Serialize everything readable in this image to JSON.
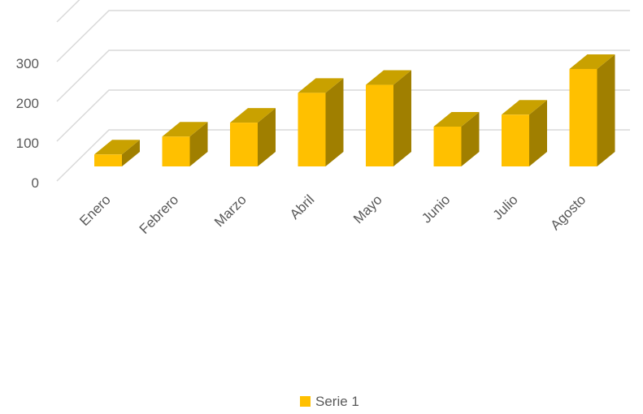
{
  "chart_data": {
    "type": "bar",
    "style": "3d-column",
    "categories": [
      "Enero",
      "Febrero",
      "Marzo",
      "Abril",
      "Mayo",
      "Junio",
      "Julio",
      "Agosto"
    ],
    "series": [
      {
        "name": "Serie 1",
        "values": [
          30,
          75,
          110,
          185,
          205,
          100,
          130,
          245
        ],
        "color": "#FFC000"
      }
    ],
    "yticks": [
      "0",
      "100",
      "200",
      "300"
    ],
    "ylim": [
      0,
      400
    ],
    "grid": true,
    "legend": "bottom",
    "title": "",
    "xlabel": "",
    "ylabel": ""
  },
  "colors": {
    "front": "#FFC000",
    "top": "#C9A100",
    "side": "#A07F00",
    "grid": "#D9D9D9",
    "text": "#595959"
  }
}
